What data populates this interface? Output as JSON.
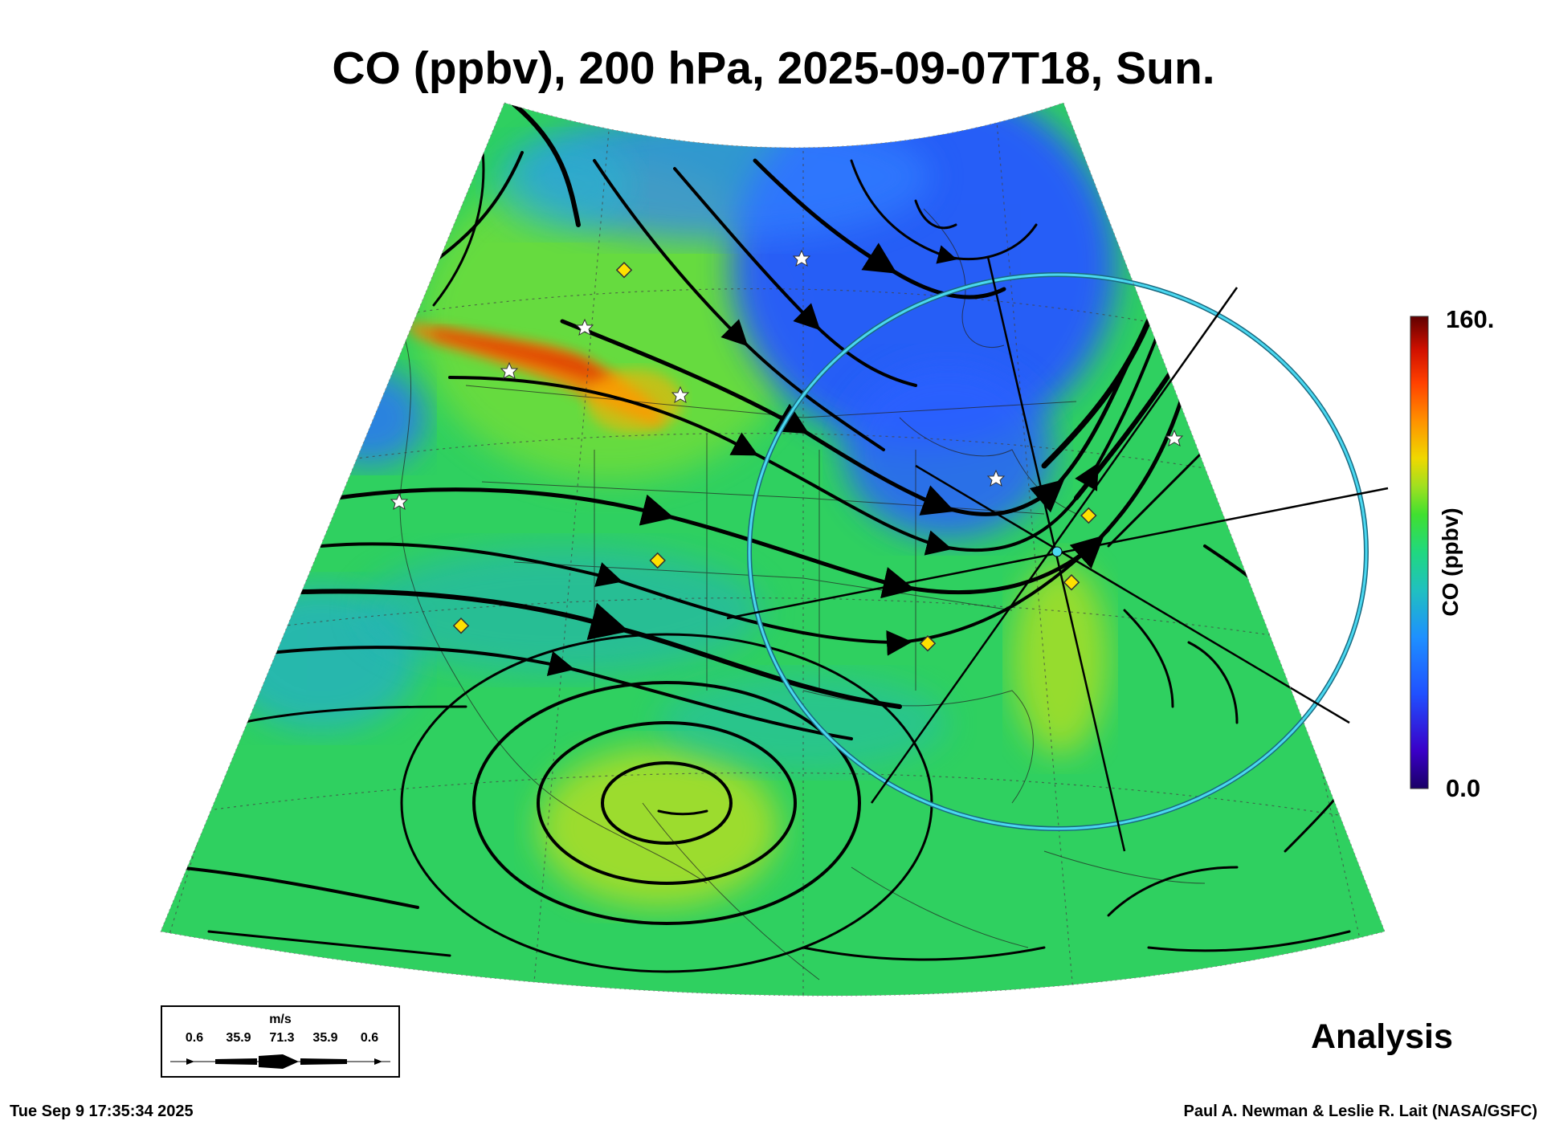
{
  "title": "CO (ppbv), 200 hPa, 2025-09-07T18, Sun.",
  "colorbar": {
    "max_label": "160.",
    "min_label": "0.0",
    "title": "CO (ppbv)",
    "range": [
      0,
      160
    ],
    "colors": [
      "#1a0066",
      "#3a00c8",
      "#2050ff",
      "#1e90ff",
      "#20c0c0",
      "#20d880",
      "#40e030",
      "#a0e020",
      "#f0d800",
      "#ff9000",
      "#ff4000",
      "#d01000",
      "#600000"
    ]
  },
  "map_label": "Analysis",
  "wind_legend": {
    "unit": "m/s",
    "values": [
      "0.6",
      "35.9",
      "71.3",
      "35.9",
      "0.6"
    ]
  },
  "footer": {
    "timestamp": "Tue Sep  9 17:35:34 2025",
    "credit": "Paul A. Newman & Leslie R. Lait (NASA/GSFC)"
  },
  "colors": {
    "background_field": "#30d060",
    "low_co_region": "#2a60ff",
    "high_co_plume": "#ff6a00",
    "range_ring": "#30c0d8",
    "marker_star": "#ffffff",
    "marker_diamond": "#ffe000"
  }
}
